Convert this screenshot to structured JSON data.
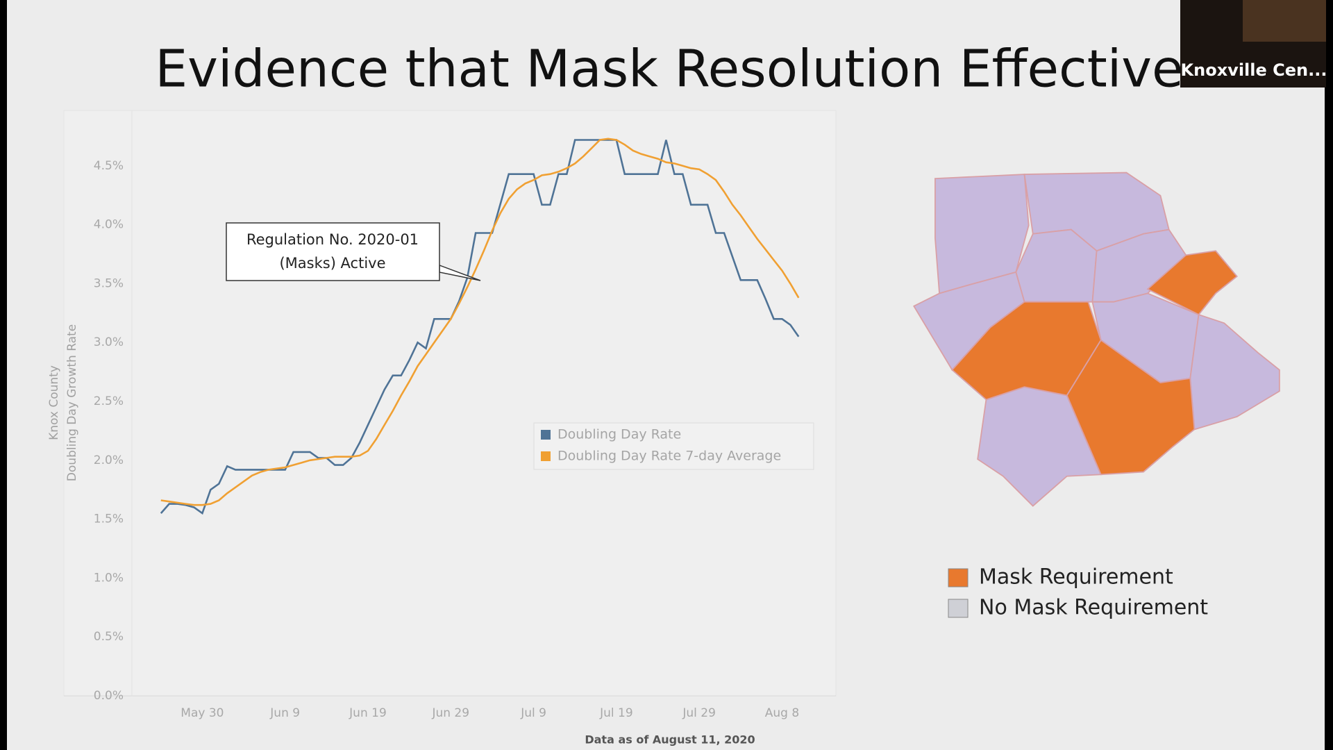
{
  "slide_title": "Evidence that Mask Resolution Effective",
  "participant_name": "Knoxville Cen...",
  "chart_data": {
    "type": "line",
    "y_label": [
      "Knox County",
      "Doubling Day Growth Rate"
    ],
    "caption": "Data as of August 11, 2020",
    "annotation": [
      "Regulation No. 2020-01",
      "(Masks) Active"
    ],
    "x": [
      -5,
      -4,
      -3,
      -2,
      -1,
      0,
      1,
      2,
      3,
      4,
      5,
      6,
      7,
      8,
      9,
      10,
      11,
      12,
      13,
      14,
      15,
      16,
      17,
      18,
      19,
      20,
      21,
      22,
      23,
      24,
      25,
      26,
      27,
      28,
      29,
      30,
      31,
      32,
      33,
      34,
      35,
      36,
      37,
      38,
      39,
      40,
      41,
      42,
      43,
      44,
      45,
      46,
      47,
      48,
      49,
      50,
      51,
      52,
      53,
      54,
      55,
      56,
      57,
      58,
      59,
      60,
      61,
      62,
      63,
      64,
      65,
      66,
      67,
      68,
      69,
      70,
      71,
      72
    ],
    "xlim": [
      -8.5,
      76.5
    ],
    "xticks": [
      {
        "value": 0,
        "label": "May 30"
      },
      {
        "value": 10,
        "label": "Jun 9"
      },
      {
        "value": 20,
        "label": "Jun 19"
      },
      {
        "value": 30,
        "label": "Jun 29"
      },
      {
        "value": 40,
        "label": "Jul 9"
      },
      {
        "value": 50,
        "label": "Jul 19"
      },
      {
        "value": 60,
        "label": "Jul 29"
      },
      {
        "value": 70,
        "label": "Aug 8"
      }
    ],
    "ylim": [
      0,
      5
    ],
    "yticks": [
      {
        "value": 0,
        "label": "0.0%"
      },
      {
        "value": 0.5,
        "label": "0.5%"
      },
      {
        "value": 1,
        "label": "1.0%"
      },
      {
        "value": 1.5,
        "label": "1.5%"
      },
      {
        "value": 2,
        "label": "2.0%"
      },
      {
        "value": 2.5,
        "label": "2.5%"
      },
      {
        "value": 3,
        "label": "3.0%"
      },
      {
        "value": 3.5,
        "label": "3.5%"
      },
      {
        "value": 4,
        "label": "4.0%"
      },
      {
        "value": 4.5,
        "label": "4.5%"
      }
    ],
    "series": [
      {
        "name": "Doubling Day Rate",
        "color": "#4f7396",
        "values": [
          1.55,
          1.63,
          1.63,
          1.62,
          1.6,
          1.55,
          1.75,
          1.8,
          1.95,
          1.92,
          1.92,
          1.92,
          1.92,
          1.92,
          1.92,
          1.92,
          2.07,
          2.07,
          2.07,
          2.02,
          2.02,
          1.96,
          1.96,
          2.02,
          2.15,
          2.3,
          2.45,
          2.6,
          2.72,
          2.72,
          2.85,
          3.0,
          2.95,
          3.2,
          3.2,
          3.2,
          3.35,
          3.55,
          3.93,
          3.93,
          3.93,
          4.18,
          4.43,
          4.43,
          4.43,
          4.43,
          4.17,
          4.17,
          4.43,
          4.43,
          4.72,
          4.72,
          4.72,
          4.72,
          4.72,
          4.72,
          4.43,
          4.43,
          4.43,
          4.43,
          4.43,
          4.72,
          4.43,
          4.43,
          4.17,
          4.17,
          4.17,
          3.93,
          3.93,
          3.73,
          3.53,
          3.53,
          3.53,
          3.37,
          3.2,
          3.2,
          3.15,
          3.05
        ]
      },
      {
        "name": "Doubling Day Rate 7-day Average",
        "color": "#f0a032",
        "values": [
          1.66,
          1.65,
          1.64,
          1.63,
          1.62,
          1.62,
          1.63,
          1.66,
          1.72,
          1.77,
          1.82,
          1.87,
          1.9,
          1.92,
          1.93,
          1.94,
          1.96,
          1.98,
          2.0,
          2.01,
          2.02,
          2.03,
          2.03,
          2.03,
          2.04,
          2.08,
          2.18,
          2.3,
          2.42,
          2.55,
          2.67,
          2.8,
          2.9,
          3.0,
          3.1,
          3.2,
          3.33,
          3.47,
          3.62,
          3.78,
          3.95,
          4.1,
          4.22,
          4.3,
          4.35,
          4.38,
          4.42,
          4.43,
          4.45,
          4.48,
          4.52,
          4.58,
          4.65,
          4.72,
          4.73,
          4.72,
          4.68,
          4.63,
          4.6,
          4.58,
          4.56,
          4.53,
          4.52,
          4.5,
          4.48,
          4.47,
          4.43,
          4.38,
          4.28,
          4.17,
          4.08,
          3.98,
          3.88,
          3.79,
          3.7,
          3.61,
          3.5,
          3.38
        ]
      }
    ]
  },
  "map_legend": [
    {
      "label": "Mask Requirement",
      "color": "#e8792e"
    },
    {
      "label": "No Mask Requirement",
      "color": "#cfd0d6"
    }
  ]
}
